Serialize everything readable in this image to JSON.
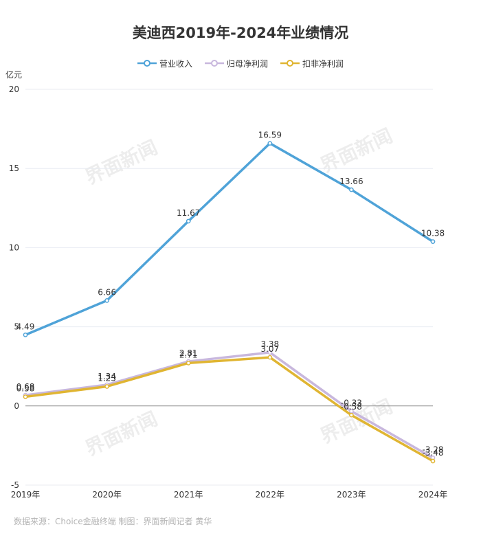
{
  "watermark": "界面新闻",
  "footer": {
    "source": "数据来源：Choice金融终端 制图：界面新闻记者 黄华"
  },
  "chart_data": {
    "type": "line",
    "title": "美迪西2019年-2024年业绩情况",
    "y_unit": "亿元",
    "categories": [
      "2019年",
      "2020年",
      "2021年",
      "2022年",
      "2023年",
      "2024年"
    ],
    "ylim": [
      -5,
      20
    ],
    "yticks": [
      -5,
      0,
      5,
      10,
      15,
      20
    ],
    "grid": true,
    "legend_position": "top",
    "series": [
      {
        "name": "营业收入",
        "color": "#4fa3d8",
        "values": [
          4.49,
          6.66,
          11.67,
          16.59,
          13.66,
          10.38
        ],
        "labels": [
          "4.49",
          "6.66",
          "11.67",
          "16.59",
          "13.66",
          "10.38"
        ]
      },
      {
        "name": "归母净利润",
        "color": "#c8b7dd",
        "values": [
          0.68,
          1.34,
          2.81,
          3.38,
          -0.33,
          -3.28
        ],
        "labels": [
          "0.68",
          "1.34",
          "2.81",
          "3.38",
          "-0.33",
          "-3.28"
        ]
      },
      {
        "name": "扣非净利润",
        "color": "#e0b532",
        "values": [
          0.58,
          1.23,
          2.71,
          3.07,
          -0.58,
          -3.48
        ],
        "labels": [
          "0.58",
          "1.23",
          "2.71",
          "3.07",
          "-0.58",
          "-3.48"
        ]
      }
    ]
  }
}
